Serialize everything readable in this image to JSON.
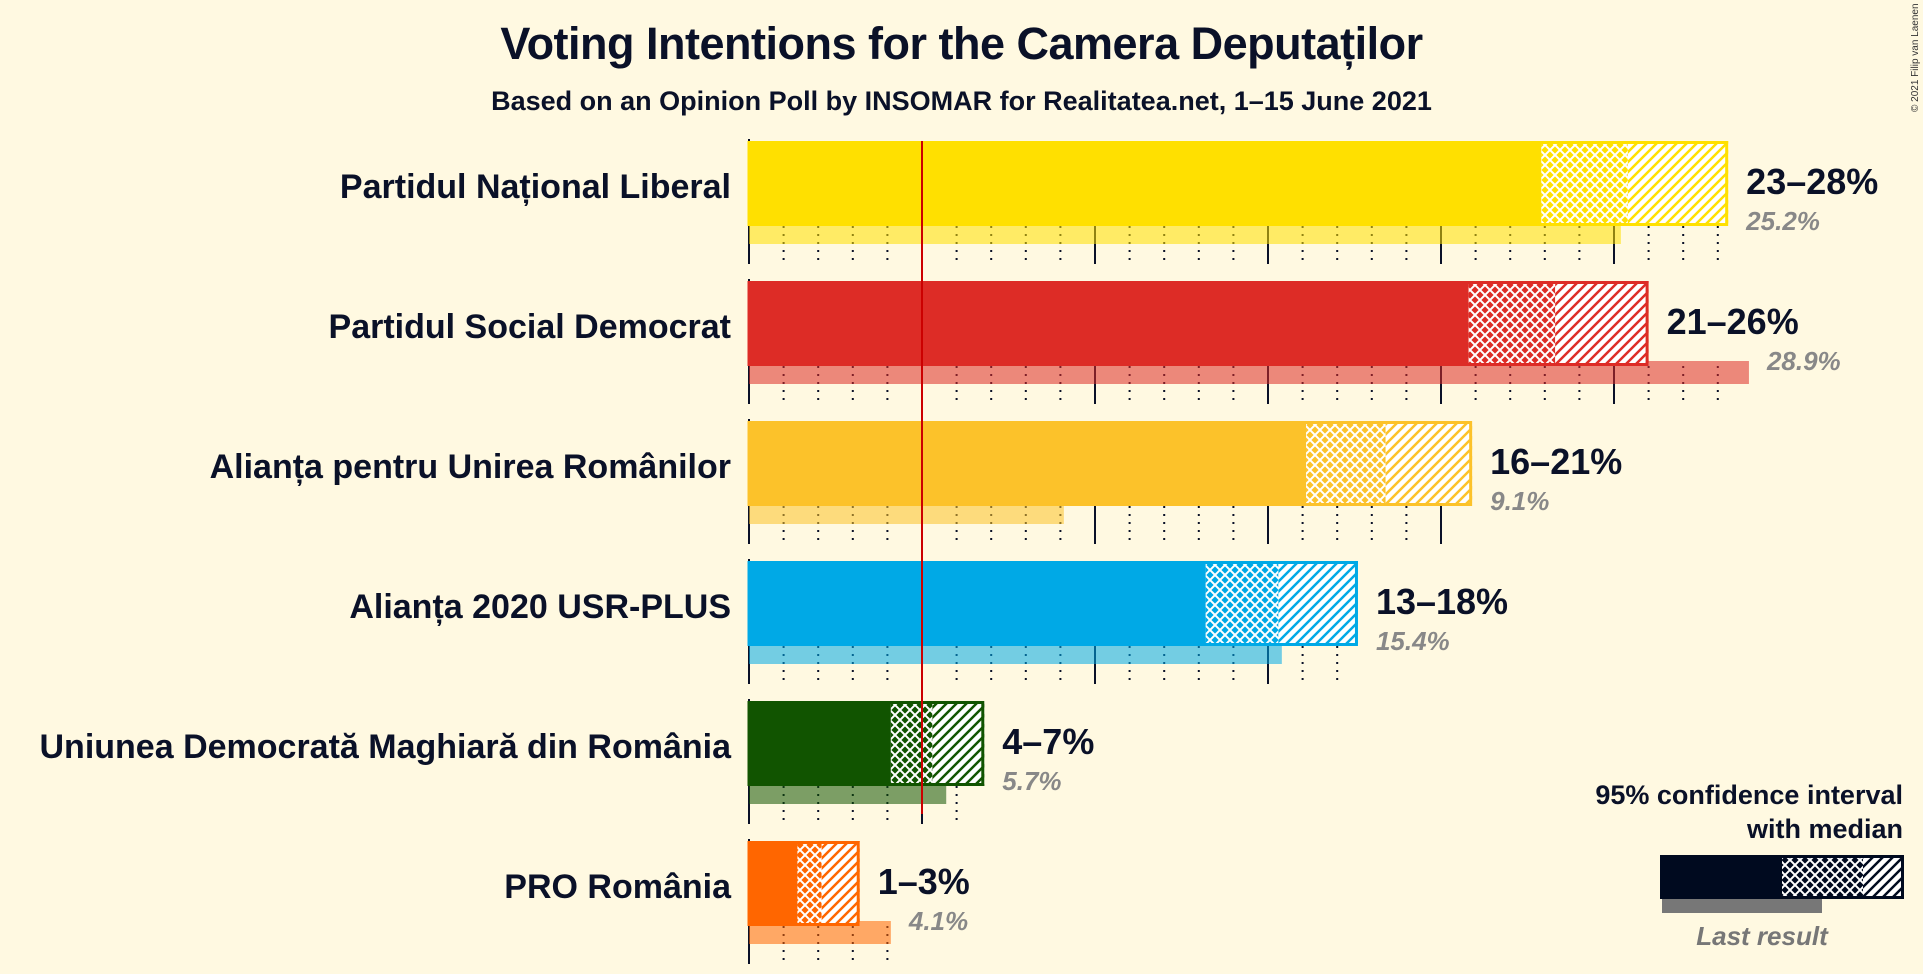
{
  "title": "Voting Intentions for the Camera Deputaților",
  "subtitle": "Based on an Opinion Poll by INSOMAR for Realitatea.net, 1–15 June 2021",
  "copyright": "© 2021 Filip van Laenen",
  "legend": {
    "line1": "95% confidence interval",
    "line2": "with median",
    "last_result": "Last result",
    "color": "#000A1F"
  },
  "chart_data": {
    "type": "bar",
    "orientation": "horizontal",
    "title": "Voting Intentions for the Camera Deputaților",
    "subtitle": "Based on an Opinion Poll by INSOMAR for Realitatea.net, 1–15 June 2021",
    "xlim": [
      0,
      30
    ],
    "threshold": 5,
    "threshold_color": "#CC0000",
    "parties": [
      {
        "name": "Partidul Național Liberal",
        "color": "#FFE000",
        "low": 22.9,
        "median": 25.4,
        "high": 28.3,
        "range_label": "23–28%",
        "last": 25.2,
        "last_label": "25.2%"
      },
      {
        "name": "Partidul Social Democrat",
        "color": "#DD2C26",
        "low": 20.8,
        "median": 23.3,
        "high": 26.0,
        "range_label": "21–26%",
        "last": 28.9,
        "last_label": "28.9%"
      },
      {
        "name": "Alianța pentru Unirea Românilor",
        "color": "#FCC22A",
        "low": 16.1,
        "median": 18.4,
        "high": 20.9,
        "range_label": "16–21%",
        "last": 9.1,
        "last_label": "9.1%"
      },
      {
        "name": "Alianța 2020 USR-PLUS",
        "color": "#00A9E6",
        "low": 13.2,
        "median": 15.3,
        "high": 17.6,
        "range_label": "13–18%",
        "last": 15.4,
        "last_label": "15.4%"
      },
      {
        "name": "Uniunea Democrată Maghiară din România",
        "color": "#115400",
        "low": 4.1,
        "median": 5.3,
        "high": 6.8,
        "range_label": "4–7%",
        "last": 5.7,
        "last_label": "5.7%"
      },
      {
        "name": "PRO România",
        "color": "#FF6600",
        "low": 1.4,
        "median": 2.1,
        "high": 3.2,
        "range_label": "1–3%",
        "last": 4.1,
        "last_label": "4.1%"
      }
    ]
  }
}
